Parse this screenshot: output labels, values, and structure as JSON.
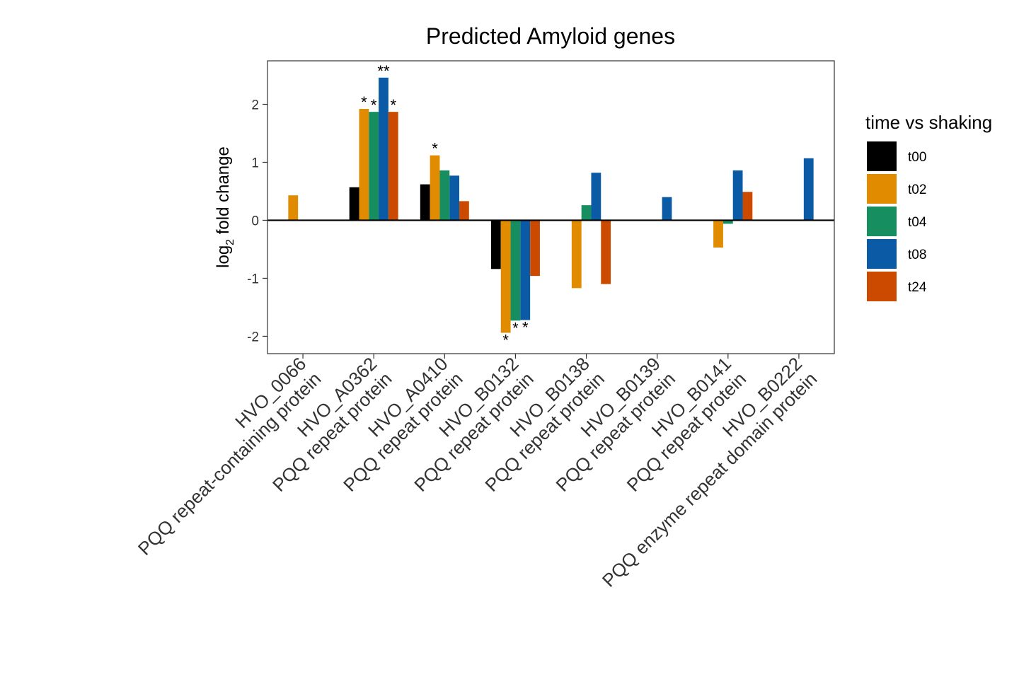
{
  "chart_data": {
    "type": "bar",
    "title": "Predicted Amyloid genes",
    "ylabel_main": "log",
    "ylabel_sub": "2",
    "ylabel_rest": " fold change",
    "ylim": [
      -2.3,
      2.75
    ],
    "yticks": [
      -2,
      -1,
      0,
      1,
      2
    ],
    "grid": false,
    "legend_position": "right",
    "legend_title": "time vs shaking",
    "categories": [
      {
        "id": "HVO_0066",
        "desc": "PQQ repeat-containing protein"
      },
      {
        "id": "HVO_A0362",
        "desc": "PQQ repeat protein"
      },
      {
        "id": "HVO_A0410",
        "desc": "PQQ repeat protein"
      },
      {
        "id": "HVO_B0132",
        "desc": "PQQ repeat protein"
      },
      {
        "id": "HVO_B0138",
        "desc": "PQQ repeat protein"
      },
      {
        "id": "HVO_B0139",
        "desc": "PQQ repeat protein"
      },
      {
        "id": "HVO_B0141",
        "desc": "PQQ repeat protein"
      },
      {
        "id": "HVO_B0222",
        "desc": "PQQ enzyme repeat domain protein"
      }
    ],
    "series": [
      {
        "name": "t00",
        "color": "#000000",
        "values": [
          null,
          0.57,
          0.62,
          -0.84,
          null,
          null,
          null,
          null
        ],
        "sig": [
          "",
          "",
          "",
          "",
          "",
          "",
          "",
          ""
        ]
      },
      {
        "name": "t02",
        "color": "#E08B00",
        "values": [
          0.43,
          1.92,
          1.12,
          -1.94,
          -1.17,
          null,
          -0.47,
          null
        ],
        "sig": [
          "",
          "*",
          "*",
          "*",
          "",
          "",
          "",
          ""
        ]
      },
      {
        "name": "t04",
        "color": "#178E5F",
        "values": [
          null,
          1.87,
          0.86,
          -1.73,
          0.26,
          null,
          -0.06,
          null
        ],
        "sig": [
          "",
          "*",
          "",
          "*",
          "",
          "",
          "",
          ""
        ]
      },
      {
        "name": "t08",
        "color": "#0A5AA5",
        "values": [
          null,
          2.46,
          0.77,
          -1.72,
          0.82,
          0.4,
          0.86,
          1.07
        ],
        "sig": [
          "",
          "**",
          "",
          "*",
          "",
          "",
          "",
          ""
        ]
      },
      {
        "name": "t24",
        "color": "#CC4A00",
        "values": [
          null,
          1.87,
          0.33,
          -0.96,
          -1.1,
          null,
          0.49,
          null
        ],
        "sig": [
          "",
          "*",
          "",
          "",
          "",
          "",
          "",
          ""
        ]
      }
    ]
  }
}
